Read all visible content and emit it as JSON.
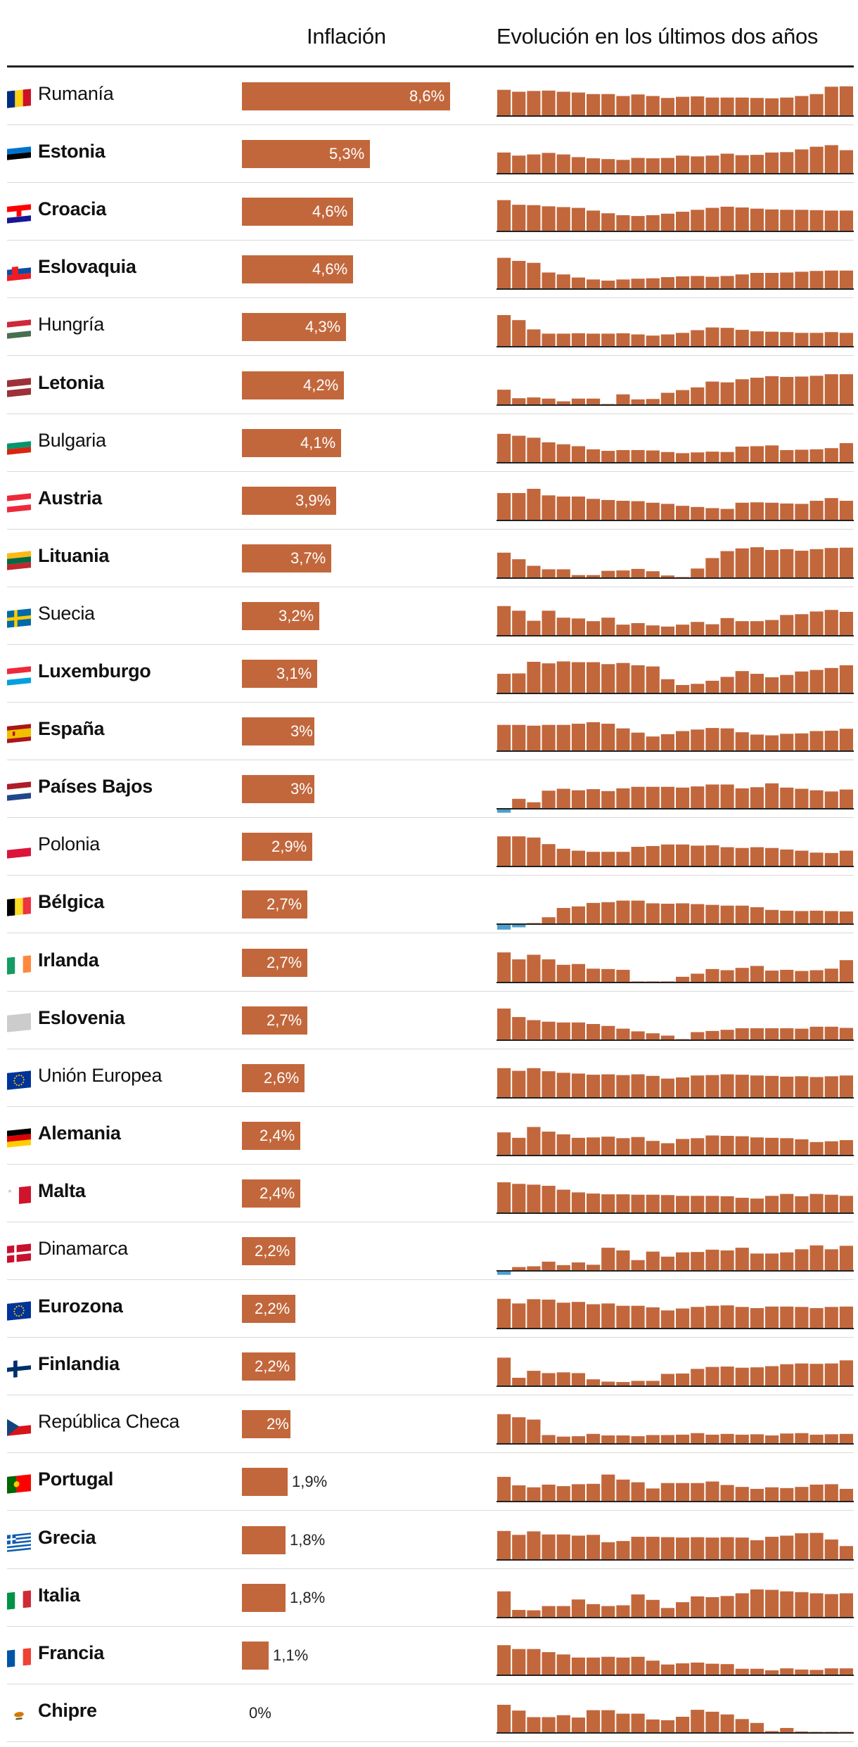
{
  "header": {
    "inflation": "Inflación",
    "evolution": "Evolución en los últimos dos años"
  },
  "colors": {
    "bar": "#c2673c",
    "negative": "#4a9fcf",
    "axis": "#222222",
    "separator": "#d9d9d9"
  },
  "chart_data": {
    "type": "bar",
    "title": "Inflación",
    "subtitle": "Evolución en los últimos dos años",
    "unit": "%",
    "scale_max": 8.6,
    "sparkline_scale": 8,
    "rows": [
      {
        "country": "Rumanía",
        "label": "8,6%",
        "value": 8.6,
        "bold": false,
        "flag": "ro",
        "trend": [
          6.6,
          6.1,
          6.3,
          6.4,
          6.1,
          5.9,
          5.5,
          5.5,
          5.0,
          5.4,
          5.0,
          4.5,
          4.8,
          4.9,
          4.6,
          4.6,
          4.6,
          4.5,
          4.4,
          4.6,
          5.0,
          5.5,
          7.4,
          7.5
        ]
      },
      {
        "country": "Estonia",
        "label": "5,3%",
        "value": 5.3,
        "bold": true,
        "flag": "ee",
        "trend": [
          5.3,
          4.5,
          4.8,
          5.2,
          4.8,
          4.1,
          3.8,
          3.6,
          3.4,
          3.9,
          3.8,
          3.9,
          4.5,
          4.3,
          4.5,
          5.0,
          4.6,
          4.7,
          5.3,
          5.4,
          6.1,
          6.8,
          7.2,
          5.9
        ]
      },
      {
        "country": "Croacia",
        "label": "4,6%",
        "value": 4.6,
        "bold": true,
        "flag": "hr",
        "trend": [
          7.9,
          6.7,
          6.6,
          6.3,
          6.1,
          5.9,
          5.2,
          4.5,
          4.0,
          3.8,
          4.0,
          4.4,
          4.9,
          5.4,
          5.9,
          6.2,
          6.0,
          5.7,
          5.5,
          5.4,
          5.4,
          5.3,
          5.2,
          5.2
        ]
      },
      {
        "country": "Eslovaquia",
        "label": "4,6%",
        "value": 4.6,
        "bold": true,
        "flag": "sk",
        "trend": [
          7.9,
          7.1,
          6.6,
          4.1,
          3.6,
          2.8,
          2.3,
          2.0,
          2.3,
          2.5,
          2.6,
          2.9,
          3.1,
          3.2,
          3.0,
          3.2,
          3.6,
          4.0,
          4.0,
          4.1,
          4.3,
          4.5,
          4.6,
          4.6
        ]
      },
      {
        "country": "Hungría",
        "label": "4,3%",
        "value": 4.3,
        "bold": false,
        "flag": "hu",
        "trend": [
          8.0,
          6.7,
          4.3,
          3.2,
          3.2,
          3.3,
          3.2,
          3.2,
          3.3,
          3.0,
          2.7,
          3.0,
          3.4,
          4.1,
          4.8,
          4.7,
          4.2,
          3.8,
          3.7,
          3.6,
          3.4,
          3.4,
          3.6,
          3.4
        ]
      },
      {
        "country": "Letonia",
        "label": "4,2%",
        "value": 4.2,
        "bold": true,
        "flag": "lv",
        "trend": [
          3.8,
          1.6,
          1.8,
          1.5,
          0.8,
          1.5,
          1.5,
          0.1,
          2.6,
          1.3,
          1.4,
          3.0,
          3.7,
          4.4,
          5.9,
          5.7,
          6.5,
          6.9,
          7.3,
          7.1,
          7.2,
          7.4,
          7.8,
          7.8
        ]
      },
      {
        "country": "Bulgaria",
        "label": "4,1%",
        "value": 4.1,
        "bold": false,
        "flag": "bg",
        "trend": [
          7.3,
          6.8,
          6.3,
          5.1,
          4.6,
          4.1,
          3.3,
          2.9,
          3.1,
          3.1,
          3.0,
          2.6,
          2.3,
          2.5,
          2.7,
          2.6,
          4.0,
          4.1,
          4.3,
          3.1,
          3.2,
          3.3,
          3.6,
          4.9
        ]
      },
      {
        "country": "Austria",
        "label": "3,9%",
        "value": 3.9,
        "bold": true,
        "flag": "at",
        "trend": [
          6.9,
          6.9,
          8.0,
          6.3,
          6.0,
          6.0,
          5.4,
          5.1,
          4.9,
          4.8,
          4.4,
          4.1,
          3.6,
          3.3,
          3.0,
          2.8,
          4.4,
          4.5,
          4.4,
          4.2,
          4.1,
          4.9,
          5.6,
          4.9
        ]
      },
      {
        "country": "Lituania",
        "label": "3,7%",
        "value": 3.7,
        "bold": true,
        "flag": "lt",
        "trend": [
          6.4,
          4.7,
          3.0,
          2.1,
          2.1,
          0.6,
          0.6,
          1.7,
          1.8,
          2.2,
          1.6,
          0.5,
          0.1,
          2.3,
          5.0,
          6.8,
          7.5,
          7.8,
          7.1,
          7.3,
          6.9,
          7.3,
          7.6,
          7.7
        ]
      },
      {
        "country": "Suecia",
        "label": "3,2%",
        "value": 3.2,
        "bold": false,
        "flag": "se",
        "trend": [
          7.5,
          6.3,
          3.7,
          6.3,
          4.5,
          4.3,
          3.6,
          4.5,
          2.7,
          3.1,
          2.5,
          2.2,
          2.7,
          3.4,
          2.8,
          4.4,
          3.6,
          3.6,
          3.9,
          5.2,
          5.4,
          6.1,
          6.5,
          6.0
        ]
      },
      {
        "country": "Luxemburgo",
        "label": "3,1%",
        "value": 3.1,
        "bold": true,
        "flag": "lu",
        "trend": [
          4.9,
          5.0,
          8.0,
          7.6,
          8.1,
          7.9,
          7.9,
          7.4,
          7.7,
          7.1,
          6.8,
          3.5,
          2.0,
          2.3,
          3.1,
          4.1,
          5.6,
          4.9,
          4.0,
          4.6,
          5.5,
          5.9,
          6.4,
          7.1
        ]
      },
      {
        "country": "España",
        "label": "3%",
        "value": 3.0,
        "bold": true,
        "flag": "es",
        "trend": [
          6.6,
          6.6,
          6.4,
          6.6,
          6.6,
          6.9,
          7.3,
          6.9,
          5.7,
          4.6,
          3.6,
          4.2,
          5.0,
          5.4,
          5.8,
          5.7,
          4.7,
          4.1,
          3.9,
          4.3,
          4.4,
          5.0,
          5.1,
          5.6
        ]
      },
      {
        "country": "Países Bajos",
        "label": "3%",
        "value": 3.0,
        "bold": true,
        "flag": "nl",
        "trend": [
          -1.2,
          2.4,
          1.5,
          4.5,
          5.0,
          4.6,
          4.9,
          4.4,
          5.1,
          5.5,
          5.5,
          5.5,
          5.3,
          5.6,
          6.1,
          6.1,
          5.1,
          5.4,
          6.4,
          5.3,
          5.0,
          4.6,
          4.3,
          4.8
        ]
      },
      {
        "country": "Polonia",
        "label": "2,9%",
        "value": 2.9,
        "bold": false,
        "flag": "pl",
        "trend": [
          7.6,
          7.6,
          7.3,
          5.6,
          4.4,
          3.9,
          3.6,
          3.6,
          3.6,
          4.9,
          5.1,
          5.5,
          5.5,
          5.2,
          5.3,
          4.8,
          4.6,
          4.8,
          4.6,
          4.2,
          3.9,
          3.4,
          3.3,
          3.9
        ]
      },
      {
        "country": "Bélgica",
        "label": "2,7%",
        "value": 2.7,
        "bold": true,
        "flag": "be",
        "trend": [
          -1.6,
          -1.0,
          0.1,
          1.6,
          4.0,
          4.4,
          5.3,
          5.5,
          5.9,
          5.9,
          5.2,
          5.1,
          5.2,
          5.0,
          4.8,
          4.6,
          4.6,
          4.2,
          3.5,
          3.3,
          3.2,
          3.3,
          3.2,
          3.1
        ]
      },
      {
        "country": "Irlanda",
        "label": "2,7%",
        "value": 2.7,
        "bold": true,
        "flag": "ie",
        "trend": [
          7.6,
          5.8,
          7.0,
          5.8,
          4.4,
          4.6,
          3.4,
          3.3,
          3.1,
          0.1,
          0.1,
          0.1,
          1.3,
          2.1,
          3.3,
          3.0,
          3.6,
          4.1,
          2.9,
          3.1,
          2.8,
          3.0,
          3.4,
          5.6
        ]
      },
      {
        "country": "Eslovenia",
        "label": "2,7%",
        "value": 2.7,
        "bold": true,
        "flag": "si",
        "trend": [
          8.0,
          5.8,
          5.0,
          4.6,
          4.4,
          4.4,
          4.0,
          3.5,
          2.8,
          2.1,
          1.6,
          1.0,
          0.1,
          1.9,
          2.2,
          2.5,
          2.9,
          2.9,
          2.9,
          2.9,
          2.8,
          3.3,
          3.3,
          3.0
        ]
      },
      {
        "country": "Unión Europea",
        "label": "2,6%",
        "value": 2.6,
        "bold": false,
        "flag": "eu",
        "trend": [
          7.5,
          6.8,
          7.5,
          6.7,
          6.3,
          6.1,
          5.8,
          5.9,
          5.7,
          5.9,
          5.5,
          4.8,
          5.1,
          5.6,
          5.7,
          5.9,
          5.8,
          5.6,
          5.5,
          5.3,
          5.4,
          5.2,
          5.4,
          5.6
        ]
      },
      {
        "country": "Alemania",
        "label": "2,4%",
        "value": 2.4,
        "bold": true,
        "flag": "de",
        "trend": [
          5.8,
          4.4,
          7.2,
          6.0,
          5.3,
          4.4,
          4.5,
          4.7,
          4.3,
          4.6,
          3.6,
          3.0,
          4.1,
          4.3,
          5.0,
          4.9,
          4.8,
          4.5,
          4.4,
          4.3,
          4.0,
          3.3,
          3.5,
          3.8
        ]
      },
      {
        "country": "Malta",
        "label": "2,4%",
        "value": 2.4,
        "bold": true,
        "flag": "mt",
        "trend": [
          7.8,
          7.4,
          7.2,
          6.9,
          5.9,
          5.2,
          4.9,
          4.7,
          4.7,
          4.6,
          4.6,
          4.5,
          4.3,
          4.3,
          4.3,
          4.2,
          3.8,
          3.6,
          4.3,
          4.8,
          4.2,
          4.8,
          4.6,
          4.3
        ]
      },
      {
        "country": "Dinamarca",
        "label": "2,2%",
        "value": 2.2,
        "bold": false,
        "flag": "dk",
        "trend": [
          -1.2,
          0.8,
          1.0,
          2.2,
          1.3,
          2.0,
          1.4,
          5.8,
          5.1,
          2.6,
          4.8,
          3.5,
          4.6,
          4.7,
          5.3,
          5.1,
          5.8,
          4.3,
          4.3,
          4.6,
          5.4,
          6.4,
          5.4,
          6.3
        ]
      },
      {
        "country": "Eurozona",
        "label": "2,2%",
        "value": 2.2,
        "bold": true,
        "flag": "eu",
        "trend": [
          7.5,
          6.3,
          7.4,
          7.3,
          6.5,
          6.7,
          6.1,
          6.3,
          5.7,
          5.7,
          5.3,
          4.5,
          5.0,
          5.4,
          5.7,
          5.8,
          5.4,
          5.1,
          5.5,
          5.5,
          5.4,
          5.1,
          5.4,
          5.5
        ]
      },
      {
        "country": "Finlandia",
        "label": "2,2%",
        "value": 2.2,
        "bold": true,
        "flag": "fi",
        "trend": [
          7.2,
          2.0,
          3.8,
          3.2,
          3.4,
          3.2,
          1.6,
          1.0,
          0.9,
          1.2,
          1.2,
          3.0,
          3.1,
          4.3,
          4.8,
          4.9,
          4.6,
          4.7,
          5.0,
          5.5,
          5.7,
          5.6,
          5.7,
          6.5
        ]
      },
      {
        "country": "República Checa",
        "label": "2%",
        "value": 2.0,
        "bold": false,
        "flag": "cz",
        "trend": [
          7.5,
          6.7,
          6.1,
          2.1,
          1.7,
          1.8,
          2.4,
          2.0,
          2.0,
          1.8,
          2.1,
          2.1,
          2.2,
          2.6,
          2.2,
          2.4,
          2.2,
          2.3,
          2.0,
          2.5,
          2.6,
          2.2,
          2.3,
          2.4
        ]
      },
      {
        "country": "Portugal",
        "label": "1,9%",
        "value": 1.9,
        "bold": true,
        "flag": "pt",
        "trend": [
          6.2,
          4.0,
          3.5,
          4.2,
          3.8,
          4.3,
          4.4,
          6.8,
          5.5,
          4.8,
          3.2,
          4.6,
          4.6,
          4.6,
          5.0,
          4.1,
          3.6,
          3.1,
          3.5,
          3.3,
          3.6,
          4.2,
          4.3,
          3.1
        ]
      },
      {
        "country": "Grecia",
        "label": "1,8%",
        "value": 1.8,
        "bold": true,
        "flag": "gr",
        "trend": [
          7.3,
          6.3,
          7.2,
          6.4,
          6.4,
          6.1,
          6.3,
          4.4,
          4.7,
          5.8,
          5.8,
          5.7,
          5.6,
          5.7,
          5.6,
          5.7,
          5.6,
          4.9,
          5.8,
          6.1,
          6.7,
          6.8,
          5.1,
          3.4
        ]
      },
      {
        "country": "Italia",
        "label": "1,8%",
        "value": 1.8,
        "bold": true,
        "flag": "it",
        "trend": [
          6.6,
          1.8,
          1.7,
          2.8,
          2.8,
          4.5,
          3.3,
          2.8,
          3.0,
          5.8,
          4.4,
          2.3,
          3.8,
          5.3,
          5.1,
          5.4,
          6.1,
          7.1,
          7.0,
          6.6,
          6.4,
          6.1,
          5.9,
          6.1
        ]
      },
      {
        "country": "Francia",
        "label": "1,1%",
        "value": 1.1,
        "bold": true,
        "flag": "fr",
        "trend": [
          7.6,
          6.6,
          6.6,
          5.8,
          5.2,
          4.4,
          4.4,
          4.6,
          4.4,
          4.6,
          3.6,
          2.6,
          2.9,
          3.1,
          2.8,
          2.7,
          1.5,
          1.5,
          1.1,
          1.6,
          1.3,
          1.2,
          1.6,
          1.6
        ]
      },
      {
        "country": "Chipre",
        "label": "0%",
        "value": 0.0,
        "bold": true,
        "flag": "cy",
        "trend": [
          7.1,
          5.6,
          3.9,
          3.9,
          4.4,
          3.8,
          5.7,
          5.7,
          4.8,
          4.8,
          3.3,
          3.1,
          4.0,
          5.8,
          5.3,
          4.6,
          3.4,
          2.4,
          0.3,
          1.1,
          0.2,
          0.1,
          0.1,
          0.1
        ]
      }
    ]
  }
}
